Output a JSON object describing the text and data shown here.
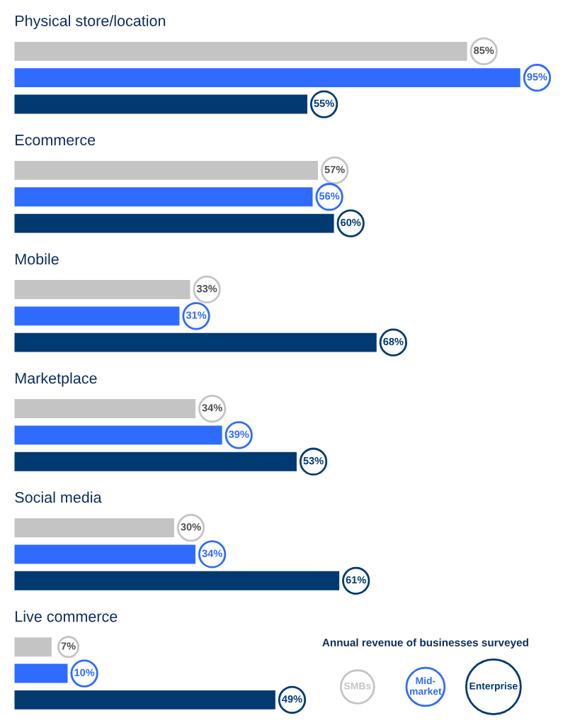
{
  "chart_data": {
    "type": "bar",
    "orientation": "horizontal",
    "categories": [
      "Physical store/location",
      "Ecommerce",
      "Mobile",
      "Marketplace",
      "Social media",
      "Live commerce"
    ],
    "legend": "bottom right",
    "legend_title": "Annual revenue of businesses surveyed",
    "series": [
      {
        "name": "SMBs",
        "color": "#c4c4c4",
        "values": [
          85,
          57,
          33,
          34,
          30,
          7
        ],
        "value_labels": [
          "85%",
          "57%",
          "33%",
          "34%",
          "30%",
          "7%"
        ]
      },
      {
        "name": "Mid-market",
        "color": "#2f6bff",
        "values": [
          95,
          56,
          31,
          39,
          34,
          10
        ],
        "value_labels": [
          "95%",
          "56%",
          "31%",
          "39%",
          "34%",
          "10%"
        ]
      },
      {
        "name": "Enterprise",
        "color": "#003a70",
        "values": [
          55,
          60,
          68,
          53,
          61,
          49
        ],
        "value_labels": [
          "55%",
          "60%",
          "68%",
          "53%",
          "61%",
          "49%"
        ]
      }
    ]
  }
}
